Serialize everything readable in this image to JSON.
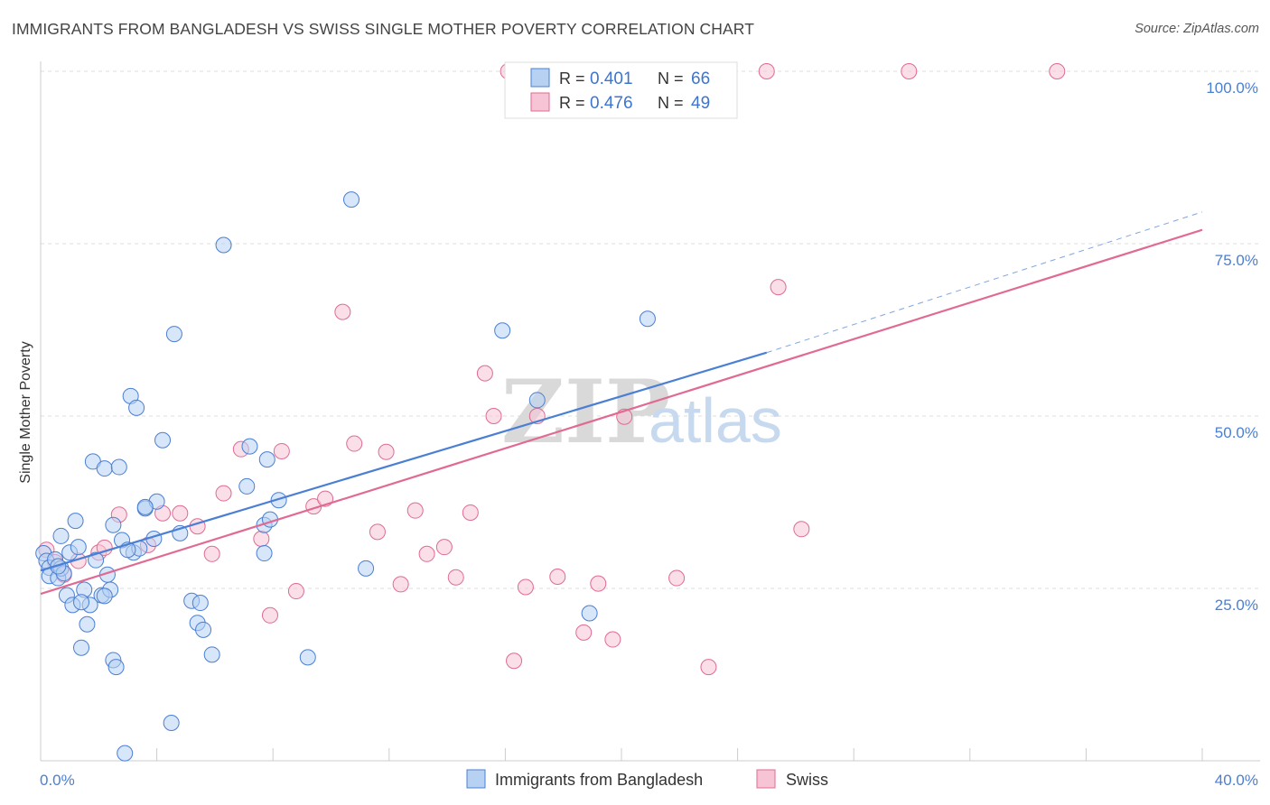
{
  "title": "IMMIGRANTS FROM BANGLADESH VS SWISS SINGLE MOTHER POVERTY CORRELATION CHART",
  "source": "Source: ZipAtlas.com",
  "watermark": {
    "part1": "ZIP",
    "part2": "atlas"
  },
  "colors": {
    "blue": "#4a7fd4",
    "blue_fill": "#b7d1f2",
    "pink": "#e06a93",
    "pink_fill": "#f7c4d5",
    "grid": "#dddddd"
  },
  "legend": {
    "rows": [
      {
        "r_label": "R = ",
        "r_value": "0.401",
        "n_label": "N = ",
        "n_value": "66"
      },
      {
        "r_label": "R = ",
        "r_value": "0.476",
        "n_label": "N = ",
        "n_value": "49"
      }
    ]
  },
  "chart_data": {
    "type": "scatter",
    "title": "IMMIGRANTS FROM BANGLADESH VS SWISS SINGLE MOTHER POVERTY CORRELATION CHART",
    "xlabel": "",
    "ylabel": "Single Mother Poverty",
    "xlim": [
      0,
      40
    ],
    "ylim": [
      0,
      100
    ],
    "x_tick_labels": [
      "0.0%",
      "40.0%"
    ],
    "y_ticks": [
      25,
      50,
      75,
      100
    ],
    "y_tick_labels": [
      "25.0%",
      "50.0%",
      "75.0%",
      "100.0%"
    ],
    "grid": "horizontal dashed",
    "legend_position": "top-center",
    "series": [
      {
        "name": "Immigrants from Bangladesh",
        "color": "#4a7fd4",
        "r": 0.401,
        "n": 66,
        "trend": {
          "x0": 0.0,
          "y0": 27.6,
          "x1": 25.0,
          "y1": 59.2,
          "dashed_to_x": 40.0,
          "dashed_y1": 79.6
        },
        "points": [
          [
            0.1,
            30.1
          ],
          [
            0.2,
            29.0
          ],
          [
            0.3,
            28.0
          ],
          [
            0.3,
            26.8
          ],
          [
            0.5,
            29.2
          ],
          [
            0.6,
            26.5
          ],
          [
            0.7,
            27.9
          ],
          [
            0.8,
            27.2
          ],
          [
            0.7,
            32.6
          ],
          [
            0.9,
            24.0
          ],
          [
            1.0,
            30.2
          ],
          [
            1.1,
            22.6
          ],
          [
            1.2,
            34.8
          ],
          [
            1.3,
            31.0
          ],
          [
            1.4,
            16.4
          ],
          [
            1.5,
            24.8
          ],
          [
            1.6,
            19.8
          ],
          [
            1.7,
            22.6
          ],
          [
            1.8,
            43.4
          ],
          [
            1.9,
            29.1
          ],
          [
            2.1,
            24.0
          ],
          [
            2.2,
            42.4
          ],
          [
            2.3,
            27.0
          ],
          [
            2.4,
            24.8
          ],
          [
            2.5,
            34.2
          ],
          [
            2.5,
            14.6
          ],
          [
            2.6,
            13.6
          ],
          [
            2.7,
            42.6
          ],
          [
            2.8,
            32.0
          ],
          [
            2.9,
            1.1
          ],
          [
            3.1,
            52.9
          ],
          [
            3.2,
            30.2
          ],
          [
            3.3,
            51.2
          ],
          [
            3.4,
            30.8
          ],
          [
            3.6,
            36.6
          ],
          [
            3.9,
            32.2
          ],
          [
            4.0,
            37.6
          ],
          [
            4.2,
            46.5
          ],
          [
            4.6,
            61.9
          ],
          [
            4.8,
            33.0
          ],
          [
            5.2,
            23.2
          ],
          [
            5.4,
            20.0
          ],
          [
            5.6,
            19.0
          ],
          [
            5.9,
            15.4
          ],
          [
            6.3,
            74.8
          ],
          [
            7.1,
            39.8
          ],
          [
            7.2,
            45.6
          ],
          [
            7.7,
            30.1
          ],
          [
            7.8,
            43.7
          ],
          [
            7.7,
            34.2
          ],
          [
            7.9,
            35.0
          ],
          [
            8.2,
            37.8
          ],
          [
            9.2,
            15.0
          ],
          [
            10.7,
            81.4
          ],
          [
            11.2,
            27.9
          ],
          [
            4.5,
            5.5
          ],
          [
            15.9,
            62.4
          ],
          [
            17.1,
            52.3
          ],
          [
            18.9,
            21.4
          ],
          [
            20.9,
            64.1
          ],
          [
            5.5,
            22.9
          ],
          [
            3.0,
            30.6
          ],
          [
            3.6,
            36.8
          ],
          [
            2.2,
            23.9
          ],
          [
            1.4,
            23.0
          ],
          [
            0.6,
            28.2
          ]
        ]
      },
      {
        "name": "Swiss",
        "color": "#e06a93",
        "r": 0.476,
        "n": 49,
        "trend": {
          "x0": 0.0,
          "y0": 24.2,
          "x1": 40.0,
          "y1": 77.0
        },
        "points": [
          [
            0.2,
            30.6
          ],
          [
            0.8,
            27.0
          ],
          [
            1.3,
            29.0
          ],
          [
            2.0,
            30.2
          ],
          [
            2.2,
            30.9
          ],
          [
            2.7,
            35.7
          ],
          [
            3.7,
            31.3
          ],
          [
            4.2,
            35.9
          ],
          [
            4.8,
            35.9
          ],
          [
            5.4,
            34.0
          ],
          [
            5.9,
            30.0
          ],
          [
            6.3,
            38.8
          ],
          [
            6.9,
            45.2
          ],
          [
            7.6,
            32.2
          ],
          [
            7.9,
            21.1
          ],
          [
            8.3,
            44.9
          ],
          [
            8.8,
            24.6
          ],
          [
            9.4,
            36.9
          ],
          [
            9.8,
            38.0
          ],
          [
            10.4,
            65.1
          ],
          [
            10.8,
            46.0
          ],
          [
            11.6,
            33.2
          ],
          [
            11.9,
            44.8
          ],
          [
            12.4,
            25.6
          ],
          [
            12.9,
            36.3
          ],
          [
            13.3,
            30.0
          ],
          [
            13.9,
            31.0
          ],
          [
            14.3,
            26.6
          ],
          [
            14.8,
            36.0
          ],
          [
            15.3,
            56.2
          ],
          [
            15.6,
            50.0
          ],
          [
            16.3,
            14.5
          ],
          [
            16.7,
            25.2
          ],
          [
            17.1,
            50.0
          ],
          [
            17.8,
            26.7
          ],
          [
            18.7,
            18.6
          ],
          [
            19.2,
            25.7
          ],
          [
            19.7,
            17.6
          ],
          [
            20.1,
            49.9
          ],
          [
            21.9,
            26.5
          ],
          [
            23.0,
            13.6
          ],
          [
            25.4,
            68.7
          ],
          [
            26.2,
            33.6
          ],
          [
            16.1,
            100.0
          ],
          [
            22.1,
            100.0
          ],
          [
            25.0,
            100.0
          ],
          [
            29.9,
            100.0
          ],
          [
            35.0,
            100.0
          ],
          [
            0.5,
            28.8
          ]
        ]
      }
    ]
  }
}
